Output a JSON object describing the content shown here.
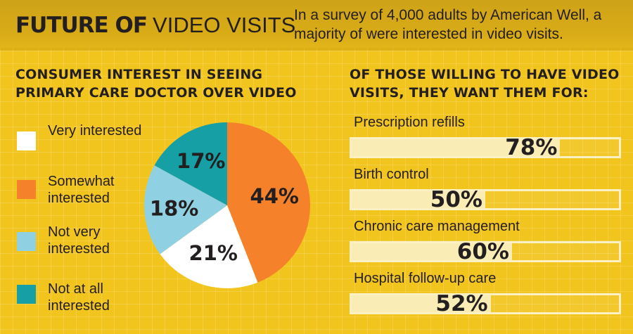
{
  "header": {
    "title_bold": "FUTURE OF",
    "title_light": "VIDEO VISITS",
    "subtitle": "In a survey of 4,000 adults by American Well, a majority of were interested in video visits."
  },
  "colors": {
    "background": "#f2c41e",
    "header_band": "#d8ab17",
    "very_interested": "#ffffff",
    "somewhat_interested": "#f5822a",
    "not_very_interested": "#8fd0e2",
    "not_at_all_interested": "#16a0a5",
    "bar_fill": "#f9ecb4",
    "bar_border": "#fbf1c4",
    "text": "#231f20"
  },
  "chart_data": [
    {
      "type": "pie",
      "title": "CONSUMER INTEREST IN SEEING PRIMARY CARE DOCTOR OVER VIDEO",
      "slices": [
        {
          "label": "Very interested",
          "value": 0,
          "color": "#ffffff",
          "data_label": ""
        },
        {
          "label": "Somewhat interested",
          "value": 44,
          "color": "#f5822a",
          "data_label": "44%"
        },
        {
          "label": "Very interested",
          "value": 21,
          "color": "#ffffff",
          "data_label": "21%"
        },
        {
          "label": "Not very interested",
          "value": 18,
          "color": "#8fd0e2",
          "data_label": "18%"
        },
        {
          "label": "Not at all interested",
          "value": 17,
          "color": "#16a0a5",
          "data_label": "17%"
        }
      ],
      "legend": [
        {
          "label": "Very interested",
          "color": "#ffffff"
        },
        {
          "label": "Somewhat interested",
          "color": "#f5822a"
        },
        {
          "label": "Not very interested",
          "color": "#8fd0e2"
        },
        {
          "label": "Not at all interested",
          "color": "#16a0a5"
        }
      ],
      "legend_position": "left"
    },
    {
      "type": "bar",
      "orientation": "horizontal",
      "title": "OF THOSE WILLING TO HAVE VIDEO VISITS, THEY WANT THEM FOR:",
      "categories": [
        "Prescription refills",
        "Birth control",
        "Chronic care management",
        "Hospital follow-up care"
      ],
      "values": [
        78,
        50,
        60,
        52
      ],
      "data_labels": [
        "78%",
        "50%",
        "60%",
        "52%"
      ],
      "xlim": [
        0,
        100
      ],
      "grid": false
    }
  ]
}
